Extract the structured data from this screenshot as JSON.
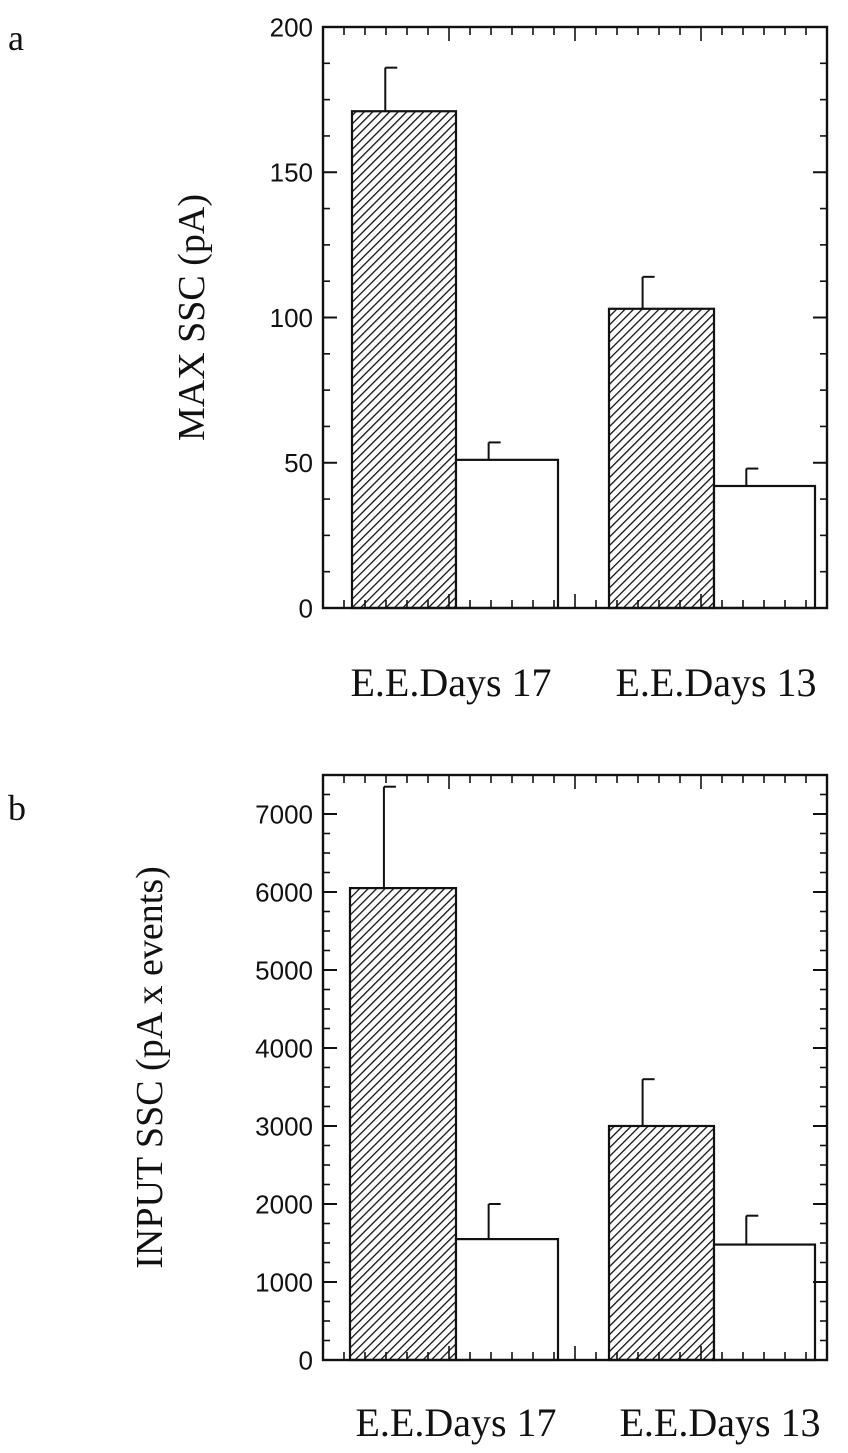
{
  "chart_data": [
    {
      "type": "bar",
      "panel": "a",
      "ylabel": "MAX SSC (pA)",
      "xlabel": "",
      "ylim": [
        0,
        200
      ],
      "yticks": [
        0,
        50,
        100,
        150,
        200
      ],
      "categories": [
        "E.E.Days 17",
        "E.E.Days 13"
      ],
      "series": [
        {
          "pattern": "hatched",
          "values": [
            171,
            103
          ],
          "errors": [
            15,
            11
          ]
        },
        {
          "pattern": "open",
          "values": [
            51,
            42
          ],
          "errors": [
            6,
            6
          ]
        }
      ],
      "grid": false,
      "legend": "none"
    },
    {
      "type": "bar",
      "panel": "b",
      "ylabel": "INPUT SSC (pA x events)",
      "xlabel": "",
      "ylim": [
        0,
        7500
      ],
      "yticks": [
        0,
        1000,
        2000,
        3000,
        4000,
        5000,
        6000,
        7000
      ],
      "categories": [
        "E.E.Days 17",
        "E.E.Days 13"
      ],
      "series": [
        {
          "pattern": "hatched",
          "values": [
            6050,
            3000
          ],
          "errors": [
            1300,
            600
          ]
        },
        {
          "pattern": "open",
          "values": [
            1550,
            1480
          ],
          "errors": [
            450,
            370
          ]
        }
      ],
      "grid": false,
      "legend": "none"
    }
  ],
  "colors": {
    "ink": "#111111",
    "background": "#ffffff"
  }
}
